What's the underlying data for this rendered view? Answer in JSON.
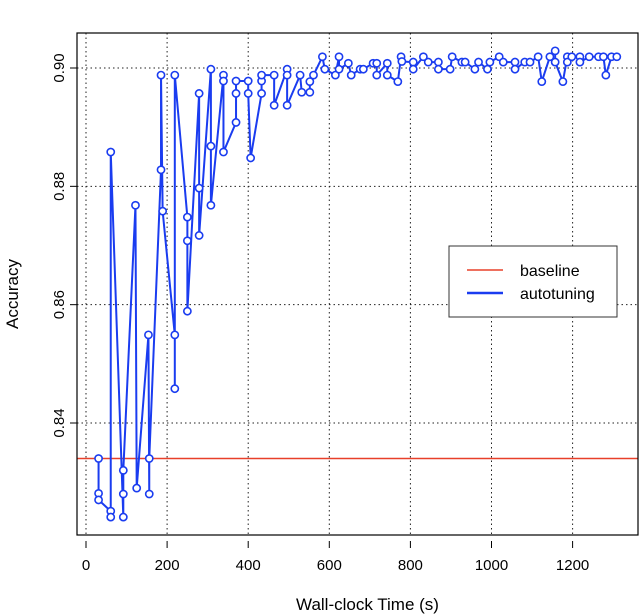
{
  "chart_data": {
    "type": "line",
    "title": "",
    "xlabel": "Wall-clock Time (s)",
    "ylabel": "Accuracy",
    "xlim": [
      0,
      1320
    ],
    "ylim": [
      0.8225,
      0.9055
    ],
    "x_ticks": [
      0,
      200,
      400,
      600,
      800,
      1000,
      1200
    ],
    "y_ticks": [
      0.84,
      0.86,
      0.88,
      0.9
    ],
    "y_tick_labels": [
      "0.84",
      "0.86",
      "0.88",
      "0.90"
    ],
    "grid": true,
    "legend": {
      "position": "right-center",
      "entries": [
        {
          "label": "baseline",
          "color": "#e8402a"
        },
        {
          "label": "autotuning",
          "color": "#1a3cf0"
        }
      ]
    },
    "series": [
      {
        "name": "baseline",
        "type": "hline",
        "color": "#e8402a",
        "y": 0.834
      },
      {
        "name": "autotuning",
        "type": "line+points",
        "color": "#1a3cf0",
        "points": [
          [
            31,
            0.834
          ],
          [
            31,
            0.8281
          ],
          [
            31,
            0.827
          ],
          [
            61,
            0.8251
          ],
          [
            61,
            0.8241
          ],
          [
            61,
            0.8858
          ],
          [
            92,
            0.8241
          ],
          [
            92,
            0.828
          ],
          [
            92,
            0.832
          ],
          [
            122,
            0.8768
          ],
          [
            125,
            0.829
          ],
          [
            154,
            0.8549
          ],
          [
            156,
            0.828
          ],
          [
            156,
            0.834
          ],
          [
            185,
            0.8828
          ],
          [
            185,
            0.8988
          ],
          [
            189,
            0.8758
          ],
          [
            219,
            0.8549
          ],
          [
            219,
            0.8458
          ],
          [
            219,
            0.8988
          ],
          [
            250,
            0.8748
          ],
          [
            250,
            0.8708
          ],
          [
            250,
            0.8589
          ],
          [
            279,
            0.8957
          ],
          [
            279,
            0.8797
          ],
          [
            279,
            0.8717
          ],
          [
            308,
            0.8998
          ],
          [
            308,
            0.8868
          ],
          [
            308,
            0.8768
          ],
          [
            339,
            0.8988
          ],
          [
            339,
            0.8978
          ],
          [
            339,
            0.8858
          ],
          [
            370,
            0.8908
          ],
          [
            370,
            0.8957
          ],
          [
            370,
            0.8978
          ],
          [
            400,
            0.8978
          ],
          [
            400,
            0.8957
          ],
          [
            406,
            0.8848
          ],
          [
            433,
            0.8957
          ],
          [
            433,
            0.8978
          ],
          [
            433,
            0.8988
          ],
          [
            464,
            0.8988
          ],
          [
            464,
            0.8937
          ],
          [
            496,
            0.8998
          ],
          [
            496,
            0.8988
          ],
          [
            496,
            0.8937
          ],
          [
            528,
            0.8988
          ],
          [
            532,
            0.8959
          ],
          [
            552,
            0.8959
          ],
          [
            552,
            0.8977
          ],
          [
            561,
            0.8988
          ],
          [
            583,
            0.9019
          ],
          [
            589,
            0.8998
          ],
          [
            615,
            0.8988
          ],
          [
            624,
            0.9019
          ],
          [
            624,
            0.8998
          ],
          [
            647,
            0.9008
          ],
          [
            654,
            0.8988
          ],
          [
            676,
            0.8998
          ],
          [
            684,
            0.8998
          ],
          [
            708,
            0.9008
          ],
          [
            717,
            0.9008
          ],
          [
            717,
            0.8988
          ],
          [
            743,
            0.9008
          ],
          [
            743,
            0.8988
          ],
          [
            769,
            0.8977
          ],
          [
            777,
            0.9019
          ],
          [
            779,
            0.9011
          ],
          [
            807,
            0.901
          ],
          [
            807,
            0.8998
          ],
          [
            832,
            0.9019
          ],
          [
            844,
            0.901
          ],
          [
            869,
            0.901
          ],
          [
            869,
            0.8998
          ],
          [
            898,
            0.8998
          ],
          [
            903,
            0.9019
          ],
          [
            927,
            0.901
          ],
          [
            935,
            0.901
          ],
          [
            959,
            0.8998
          ],
          [
            968,
            0.901
          ],
          [
            990,
            0.8998
          ],
          [
            996,
            0.901
          ],
          [
            1019,
            0.9019
          ],
          [
            1029,
            0.901
          ],
          [
            1058,
            0.901
          ],
          [
            1058,
            0.8998
          ],
          [
            1082,
            0.901
          ],
          [
            1095,
            0.901
          ],
          [
            1115,
            0.9019
          ],
          [
            1124,
            0.8977
          ],
          [
            1144,
            0.9019
          ],
          [
            1157,
            0.9029
          ],
          [
            1157,
            0.901
          ],
          [
            1176,
            0.8977
          ],
          [
            1187,
            0.9019
          ],
          [
            1187,
            0.901
          ],
          [
            1198,
            0.9019
          ],
          [
            1218,
            0.9019
          ],
          [
            1218,
            0.901
          ],
          [
            1241,
            0.9019
          ],
          [
            1264,
            0.9019
          ],
          [
            1276,
            0.9019
          ],
          [
            1282,
            0.8988
          ],
          [
            1296,
            0.9019
          ],
          [
            1309,
            0.9019
          ]
        ]
      }
    ]
  }
}
